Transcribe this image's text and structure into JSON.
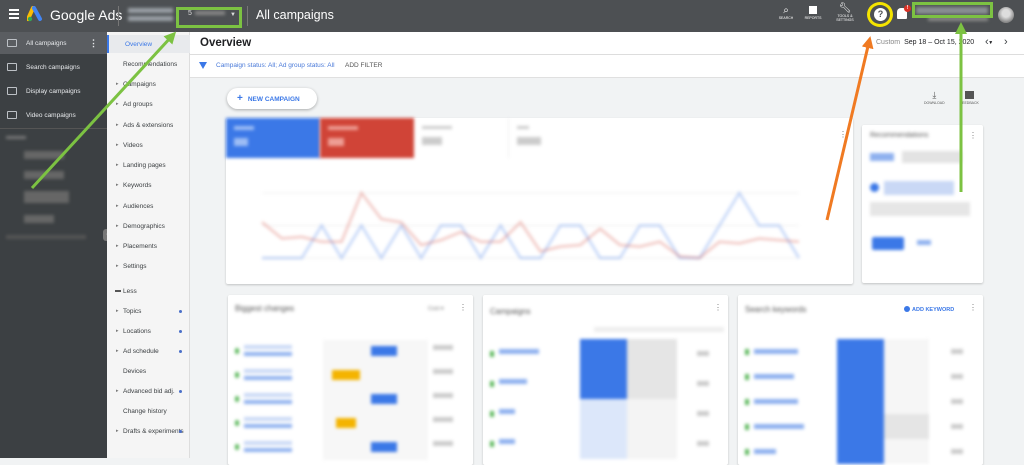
{
  "topbar": {
    "brand": "Google Ads",
    "page_title": "All campaigns",
    "account_selector": "5",
    "icons": [
      {
        "name": "search-icon",
        "label": "SEARCH"
      },
      {
        "name": "reports-icon",
        "label": "REPORTS"
      },
      {
        "name": "tools-icon",
        "label": "TOOLS & SETTINGS"
      }
    ],
    "help_icon": "?",
    "notification_badge": "!"
  },
  "leftbar": {
    "items": [
      {
        "label": "All campaigns",
        "icon": "grid-icon"
      },
      {
        "label": "Search campaigns",
        "icon": "search-icon"
      },
      {
        "label": "Display campaigns",
        "icon": "display-icon"
      },
      {
        "label": "Video campaigns",
        "icon": "video-icon"
      }
    ]
  },
  "nav": {
    "items": [
      {
        "label": "Overview",
        "caret": false,
        "dot": false
      },
      {
        "label": "Recommendations",
        "caret": false,
        "dot": false
      },
      {
        "label": "Campaigns",
        "caret": true,
        "dot": false
      },
      {
        "label": "Ad groups",
        "caret": true,
        "dot": false
      },
      {
        "label": "Ads & extensions",
        "caret": true,
        "dot": false
      },
      {
        "label": "Videos",
        "caret": true,
        "dot": false
      },
      {
        "label": "Landing pages",
        "caret": true,
        "dot": false
      },
      {
        "label": "Keywords",
        "caret": true,
        "dot": false
      },
      {
        "label": "Audiences",
        "caret": true,
        "dot": false
      },
      {
        "label": "Demographics",
        "caret": true,
        "dot": false
      },
      {
        "label": "Placements",
        "caret": true,
        "dot": false
      },
      {
        "label": "Settings",
        "caret": true,
        "dot": false
      },
      {
        "label": "Less",
        "caret": false,
        "dot": false
      },
      {
        "label": "Topics",
        "caret": true,
        "dot": true
      },
      {
        "label": "Locations",
        "caret": true,
        "dot": true
      },
      {
        "label": "Ad schedule",
        "caret": true,
        "dot": true
      },
      {
        "label": "Devices",
        "caret": false,
        "dot": false
      },
      {
        "label": "Advanced bid adj.",
        "caret": true,
        "dot": true
      },
      {
        "label": "Change history",
        "caret": false,
        "dot": false
      },
      {
        "label": "Drafts & experiments",
        "caret": true,
        "dot": true
      }
    ]
  },
  "main": {
    "title": "Overview",
    "date_prefix": "Custom",
    "date_range": "Sep 18 – Oct 15, 2020",
    "filter_text": "Campaign status: All; Ad group status: All",
    "add_filter": "ADD FILTER",
    "new_campaign": "NEW CAMPAIGN",
    "download": "DOWNLOAD",
    "feedback": "FEEDBACK",
    "biggest_changes": "Biggest changes",
    "biggest_changes_metric": "Cost",
    "campaigns": "Campaigns",
    "search_keywords": "Search keywords",
    "add_keyword": "ADD KEYWORD",
    "recommendations": "Recommendations"
  },
  "colors": {
    "blue": "#3b78e7",
    "red": "#d04437",
    "annotation_green": "#7cc242",
    "annotation_orange": "#f07a22",
    "annotation_yellow": "#f5e400"
  },
  "chart_data": {
    "type": "line",
    "series": [
      {
        "color": "#3b78e7",
        "values": [
          0,
          0,
          0,
          1,
          0,
          1,
          0,
          1,
          0,
          1,
          1,
          0,
          1,
          0,
          0,
          1,
          1,
          0,
          0,
          1,
          1,
          0,
          0,
          1,
          2,
          1,
          1,
          0
        ]
      },
      {
        "color": "#d04437",
        "values": [
          1.1,
          0.6,
          0.65,
          0.5,
          0.5,
          2,
          1.2,
          1.1,
          0.4,
          0.55,
          0.8,
          0.5,
          0.5,
          1.1,
          0.2,
          0.35,
          0.4,
          0.9,
          0.4,
          0.35,
          0.5,
          0.05,
          0,
          0.5,
          0.45,
          0.6,
          0.55,
          0.5
        ]
      }
    ],
    "ylim": [
      0,
      2
    ]
  }
}
